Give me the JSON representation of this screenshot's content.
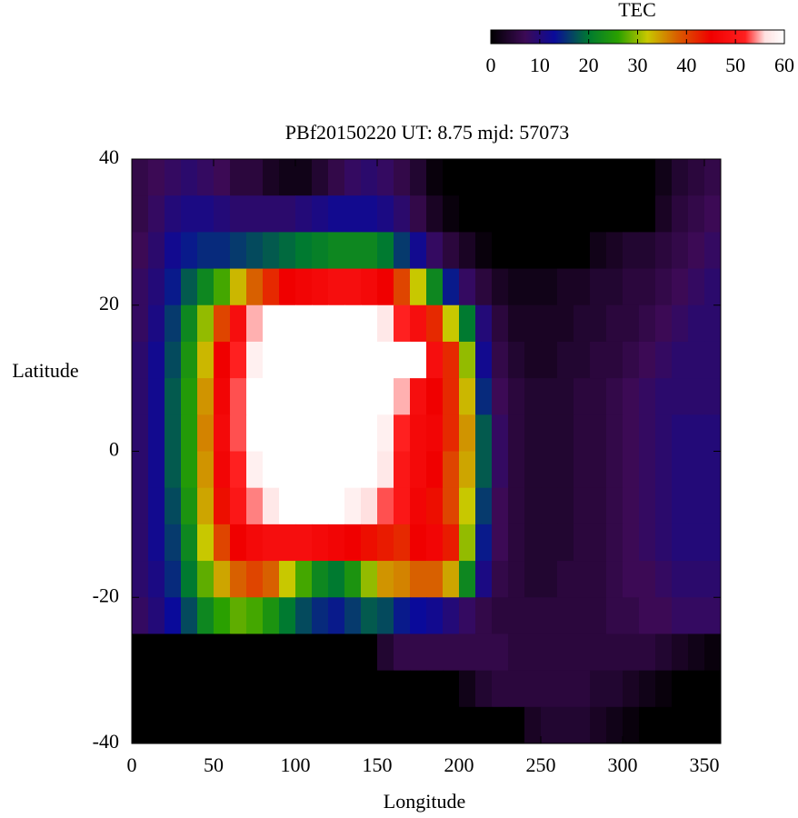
{
  "chart_data": {
    "type": "heatmap",
    "title": "PBf20150220  UT: 8.75  mjd: 57073",
    "x_label": "Longitude",
    "y_label": "Latitude",
    "colorbar_label": "TEC",
    "xlim": [
      0,
      360
    ],
    "ylim": [
      -40,
      40
    ],
    "xticks": [
      0,
      50,
      100,
      150,
      200,
      250,
      300,
      350
    ],
    "yticks": [
      -40,
      -20,
      0,
      20,
      40
    ],
    "cblim": [
      0,
      60
    ],
    "cbticks": [
      0,
      10,
      20,
      30,
      40,
      50,
      60
    ],
    "palette": [
      {
        "value": 0,
        "color": "#000000"
      },
      {
        "value": 7,
        "color": "#3c0a55"
      },
      {
        "value": 13,
        "color": "#0a0a9a"
      },
      {
        "value": 20,
        "color": "#007a30"
      },
      {
        "value": 26,
        "color": "#2aa000"
      },
      {
        "value": 32,
        "color": "#c8c800"
      },
      {
        "value": 38,
        "color": "#d86000"
      },
      {
        "value": 45,
        "color": "#f00000"
      },
      {
        "value": 52,
        "color": "#ff2020"
      },
      {
        "value": 56,
        "color": "#ffe0e0"
      },
      {
        "value": 60,
        "color": "#ffffff"
      }
    ],
    "x": [
      5,
      15,
      25,
      35,
      45,
      55,
      65,
      75,
      85,
      95,
      105,
      115,
      125,
      135,
      145,
      155,
      165,
      175,
      185,
      195,
      205,
      215,
      225,
      235,
      245,
      255,
      265,
      275,
      285,
      295,
      305,
      315,
      325,
      335,
      345,
      355
    ],
    "y": [
      37.5,
      32.5,
      27.5,
      22.5,
      17.5,
      12.5,
      7.5,
      2.5,
      -2.5,
      -7.5,
      -12.5,
      -17.5,
      -22.5,
      -27.5,
      -32.5,
      -37.5
    ],
    "z": [
      [
        6,
        7,
        8,
        9,
        8,
        7,
        5,
        5,
        3,
        2,
        2,
        4,
        6,
        8,
        9,
        8,
        6,
        4,
        1,
        0,
        0,
        0,
        0,
        0,
        0,
        0,
        0,
        0,
        0,
        0,
        0,
        0,
        2,
        4,
        5,
        6
      ],
      [
        6,
        8,
        10,
        11,
        11,
        10,
        9,
        9,
        9,
        9,
        10,
        11,
        12,
        12,
        12,
        11,
        9,
        6,
        3,
        1,
        0,
        0,
        0,
        0,
        0,
        0,
        0,
        0,
        0,
        0,
        0,
        0,
        3,
        5,
        6,
        7
      ],
      [
        7,
        9,
        12,
        14,
        15,
        15,
        16,
        17,
        18,
        19,
        20,
        21,
        22,
        22,
        22,
        20,
        16,
        12,
        8,
        5,
        3,
        1,
        0,
        0,
        0,
        0,
        0,
        0,
        2,
        3,
        4,
        4,
        5,
        6,
        7,
        8
      ],
      [
        8,
        10,
        14,
        18,
        22,
        27,
        33,
        38,
        42,
        45,
        46,
        47,
        48,
        48,
        47,
        45,
        40,
        32,
        22,
        14,
        8,
        5,
        3,
        2,
        2,
        2,
        3,
        3,
        4,
        4,
        5,
        5,
        6,
        7,
        8,
        9
      ],
      [
        8,
        11,
        16,
        22,
        30,
        40,
        48,
        55,
        60,
        60,
        60,
        60,
        60,
        60,
        60,
        57,
        52,
        48,
        42,
        32,
        20,
        10,
        5,
        3,
        3,
        3,
        3,
        4,
        4,
        5,
        5,
        6,
        7,
        8,
        9,
        9
      ],
      [
        9,
        12,
        17,
        24,
        33,
        45,
        52,
        58,
        60,
        60,
        60,
        60,
        60,
        60,
        60,
        60,
        60,
        60,
        48,
        42,
        30,
        12,
        6,
        4,
        3,
        3,
        4,
        4,
        5,
        5,
        6,
        7,
        8,
        9,
        9,
        9
      ],
      [
        9,
        12,
        18,
        25,
        35,
        46,
        53,
        60,
        60,
        60,
        60,
        60,
        60,
        60,
        60,
        60,
        55,
        48,
        45,
        42,
        33,
        15,
        7,
        5,
        4,
        4,
        4,
        5,
        5,
        6,
        7,
        8,
        9,
        9,
        9,
        9
      ],
      [
        9,
        12,
        18,
        25,
        36,
        47,
        53,
        60,
        60,
        60,
        60,
        60,
        60,
        60,
        60,
        58,
        52,
        47,
        46,
        42,
        35,
        18,
        8,
        5,
        4,
        4,
        4,
        5,
        5,
        6,
        7,
        8,
        9,
        10,
        10,
        10
      ],
      [
        9,
        12,
        18,
        25,
        35,
        46,
        52,
        58,
        60,
        60,
        60,
        60,
        60,
        60,
        60,
        57,
        50,
        47,
        45,
        40,
        34,
        18,
        8,
        5,
        4,
        4,
        4,
        5,
        5,
        6,
        7,
        8,
        9,
        10,
        10,
        10
      ],
      [
        9,
        12,
        17,
        24,
        34,
        44,
        50,
        54,
        57,
        60,
        60,
        60,
        60,
        58,
        56,
        53,
        50,
        46,
        44,
        40,
        32,
        16,
        7,
        5,
        4,
        4,
        4,
        5,
        5,
        6,
        7,
        8,
        9,
        10,
        10,
        10
      ],
      [
        9,
        12,
        16,
        22,
        32,
        40,
        45,
        47,
        48,
        48,
        48,
        47,
        46,
        45,
        44,
        43,
        42,
        45,
        46,
        43,
        30,
        14,
        7,
        5,
        4,
        4,
        4,
        5,
        5,
        6,
        7,
        8,
        9,
        10,
        10,
        10
      ],
      [
        9,
        11,
        15,
        20,
        28,
        34,
        38,
        40,
        38,
        32,
        27,
        22,
        20,
        24,
        30,
        35,
        36,
        38,
        38,
        34,
        22,
        11,
        6,
        5,
        4,
        4,
        5,
        5,
        5,
        6,
        7,
        7,
        8,
        9,
        9,
        9
      ],
      [
        8,
        10,
        13,
        17,
        22,
        26,
        28,
        27,
        24,
        20,
        17,
        15,
        14,
        16,
        18,
        17,
        14,
        13,
        12,
        10,
        8,
        6,
        5,
        5,
        5,
        5,
        5,
        5,
        5,
        6,
        6,
        7,
        7,
        8,
        8,
        8
      ],
      [
        0,
        0,
        0,
        0,
        0,
        0,
        0,
        0,
        0,
        0,
        0,
        0,
        0,
        0,
        0,
        4,
        6,
        6,
        6,
        6,
        6,
        6,
        6,
        5,
        5,
        5,
        5,
        5,
        5,
        5,
        5,
        5,
        4,
        3,
        2,
        1
      ],
      [
        0,
        0,
        0,
        0,
        0,
        0,
        0,
        0,
        0,
        0,
        0,
        0,
        0,
        0,
        0,
        0,
        0,
        0,
        0,
        0,
        2,
        4,
        5,
        5,
        5,
        5,
        5,
        5,
        4,
        4,
        3,
        2,
        1,
        0,
        0,
        0
      ],
      [
        0,
        0,
        0,
        0,
        0,
        0,
        0,
        0,
        0,
        0,
        0,
        0,
        0,
        0,
        0,
        0,
        0,
        0,
        0,
        0,
        0,
        0,
        0,
        0,
        3,
        4,
        4,
        4,
        3,
        2,
        1,
        0,
        0,
        0,
        0,
        0
      ]
    ]
  }
}
